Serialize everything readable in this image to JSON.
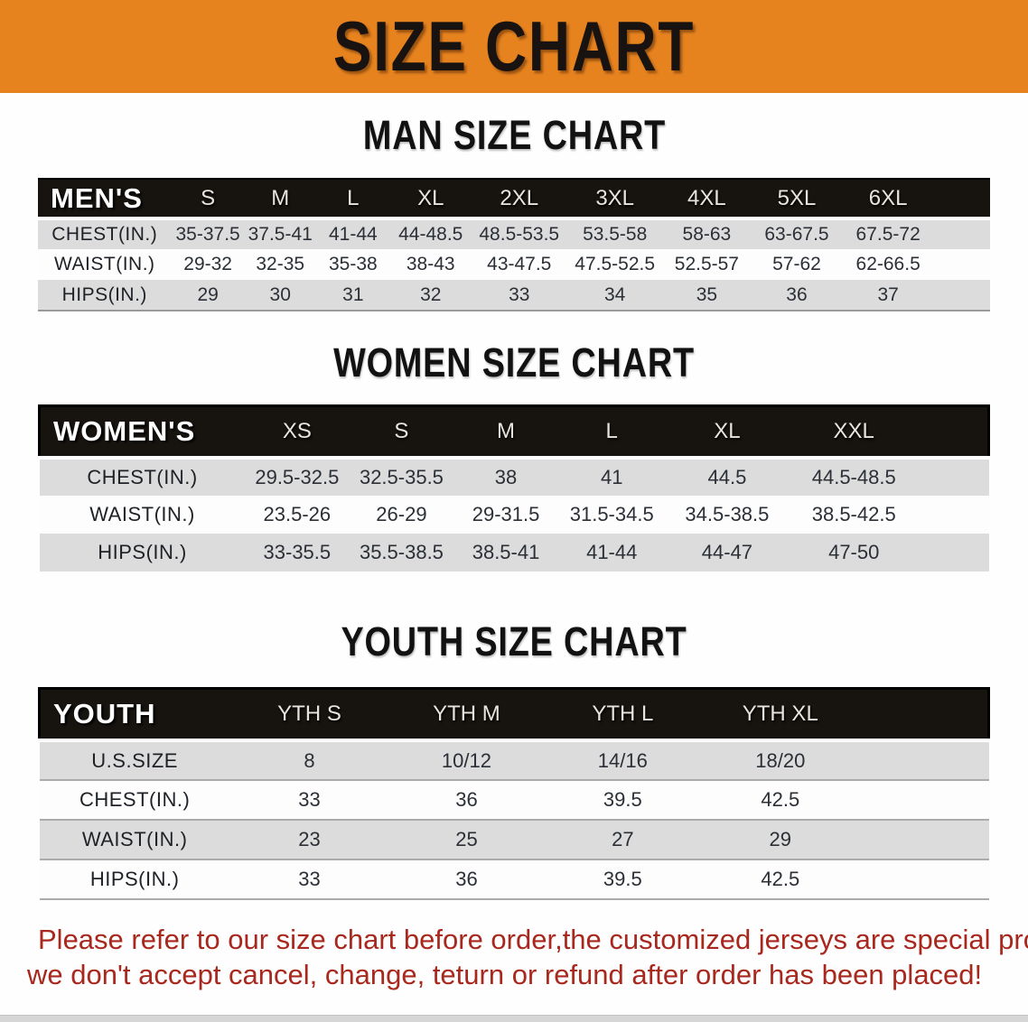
{
  "banner": {
    "title": "SIZE CHART"
  },
  "headings": {
    "men": "MAN SIZE CHART",
    "women": "WOMEN SIZE CHART",
    "youth": "YOUTH SIZE CHART"
  },
  "tables": {
    "men": {
      "label": "MEN'S",
      "columns": [
        "S",
        "M",
        "L",
        "XL",
        "2XL",
        "3XL",
        "4XL",
        "5XL",
        "6XL"
      ],
      "rows": [
        {
          "label": "CHEST(IN.)",
          "values": [
            "35-37.5",
            "37.5-41",
            "41-44",
            "44-48.5",
            "48.5-53.5",
            "53.5-58",
            "58-63",
            "63-67.5",
            "67.5-72"
          ]
        },
        {
          "label": "WAIST(IN.)",
          "values": [
            "29-32",
            "32-35",
            "35-38",
            "38-43",
            "43-47.5",
            "47.5-52.5",
            "52.5-57",
            "57-62",
            "62-66.5"
          ]
        },
        {
          "label": "HIPS(IN.)",
          "values": [
            "29",
            "30",
            "31",
            "32",
            "33",
            "34",
            "35",
            "36",
            "37"
          ]
        }
      ]
    },
    "women": {
      "label": "WOMEN'S",
      "columns": [
        "XS",
        "S",
        "M",
        "L",
        "XL",
        "XXL"
      ],
      "rows": [
        {
          "label": "CHEST(IN.)",
          "values": [
            "29.5-32.5",
            "32.5-35.5",
            "38",
            "41",
            "44.5",
            "44.5-48.5"
          ]
        },
        {
          "label": "WAIST(IN.)",
          "values": [
            "23.5-26",
            "26-29",
            "29-31.5",
            "31.5-34.5",
            "34.5-38.5",
            "38.5-42.5"
          ]
        },
        {
          "label": "HIPS(IN.)",
          "values": [
            "33-35.5",
            "35.5-38.5",
            "38.5-41",
            "41-44",
            "44-47",
            "47-50"
          ]
        }
      ]
    },
    "youth": {
      "label": "YOUTH",
      "columns": [
        "YTH S",
        "YTH M",
        "YTH L",
        "YTH XL"
      ],
      "rows": [
        {
          "label": "U.S.SIZE",
          "values": [
            "8",
            "10/12",
            "14/16",
            "18/20"
          ]
        },
        {
          "label": "CHEST(IN.)",
          "values": [
            "33",
            "36",
            "39.5",
            "42.5"
          ]
        },
        {
          "label": "WAIST(IN.)",
          "values": [
            "23",
            "25",
            "27",
            "29"
          ]
        },
        {
          "label": "HIPS(IN.)",
          "values": [
            "33",
            "36",
            "39.5",
            "42.5"
          ]
        }
      ]
    }
  },
  "disclaimer": {
    "line1": "Please refer to our size chart before order,the customized jerseys are special products,",
    "line2": "we don't accept cancel, change, teturn or refund after order has been placed!"
  },
  "colors": {
    "page_bg": "#FEFEFE",
    "banner_bg": "#E6831F",
    "banner_text": "#181310",
    "header_bg": "#17130F",
    "header_text": "#FFFFFF",
    "row_alt_bg": "#DCDCDC",
    "row_bg": "#FDFDFD",
    "cell_text": "#2B2F36",
    "disclaimer_text": "#A8281E"
  }
}
